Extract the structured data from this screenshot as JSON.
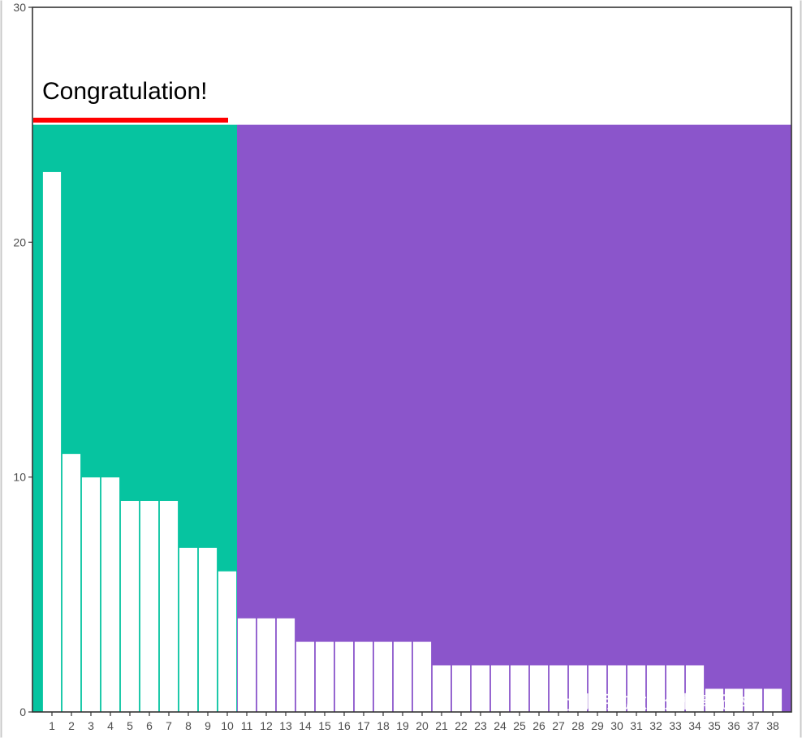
{
  "chart_data": {
    "type": "bar",
    "title": "",
    "xlabel": "",
    "ylabel": "",
    "annotation": "Congratulation!",
    "categories": [
      "1",
      "2",
      "3",
      "4",
      "5",
      "6",
      "7",
      "8",
      "9",
      "10",
      "11",
      "12",
      "13",
      "14",
      "15",
      "16",
      "17",
      "18",
      "19",
      "20",
      "21",
      "22",
      "23",
      "24",
      "25",
      "26",
      "27",
      "28",
      "29",
      "30",
      "31",
      "32",
      "33",
      "34",
      "35",
      "36",
      "37",
      "38"
    ],
    "values": [
      23,
      11,
      10,
      10,
      9,
      9,
      9,
      7,
      7,
      6,
      4,
      4,
      4,
      3,
      3,
      3,
      3,
      3,
      3,
      3,
      2,
      2,
      2,
      2,
      2,
      2,
      2,
      2,
      2,
      2,
      2,
      2,
      2,
      2,
      1,
      1,
      1,
      1
    ],
    "ylim": [
      0,
      30
    ],
    "yticks": [
      0,
      10,
      20,
      30
    ],
    "background_regions": [
      {
        "from_category": "1",
        "to_category": "10",
        "level": 25,
        "color": "#06C4A0"
      },
      {
        "from_category": "11",
        "to_category": "38",
        "level": 25,
        "color": "#8B55CB"
      }
    ],
    "bar_color": "#FFFFFF",
    "underline_color": "#FF0000",
    "grid": false,
    "legend": "none"
  },
  "watermark": {
    "text": "小明的数据分析笔记本",
    "icon": "wechat-icon"
  },
  "colors": {
    "axis": "#333333",
    "tick_label": "#4D4D4D",
    "frame": "#333333"
  }
}
